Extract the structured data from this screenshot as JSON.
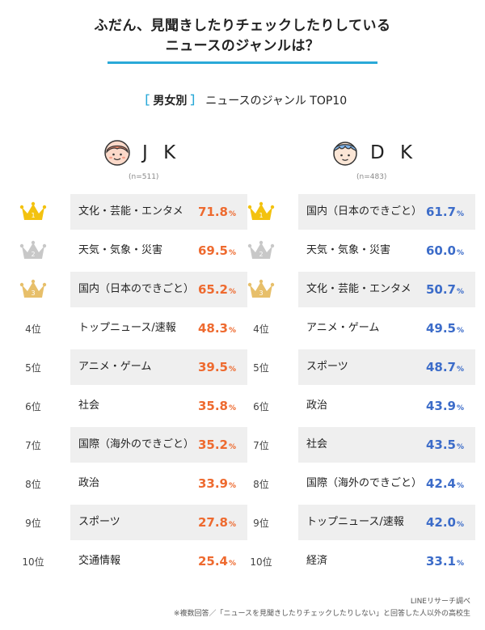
{
  "title_line1": "ふだん、見聞きしたりチェックしたりしている",
  "title_line2": "ニュースのジャンルは？",
  "subtitle": {
    "open_bracket": "［",
    "category": "男女別",
    "close_bracket": "］",
    "text": "ニュースのジャンル TOP10"
  },
  "colors": {
    "accent": "#2aa9d8",
    "jk_value": "#ee6a2f",
    "dk_value": "#3c6cc9",
    "gold": "#f3c20f",
    "silver": "#c8c8c8",
    "bronze": "#e7bf6a"
  },
  "chart_data": [
    {
      "type": "table",
      "group": "J K",
      "n_label": "(n=511)",
      "unit": "%",
      "ranks": [
        "1",
        "2",
        "3",
        "4位",
        "5位",
        "6位",
        "7位",
        "8位",
        "9位",
        "10位"
      ],
      "categories": [
        "文化・芸能・エンタメ",
        "天気・気象・災害",
        "国内（日本のできごと）",
        "トップニュース/速報",
        "アニメ・ゲーム",
        "社会",
        "国際（海外のできごと）",
        "政治",
        "スポーツ",
        "交通情報"
      ],
      "values": [
        71.8,
        69.5,
        65.2,
        48.3,
        39.5,
        35.8,
        35.2,
        33.9,
        27.8,
        25.4
      ]
    },
    {
      "type": "table",
      "group": "D K",
      "n_label": "(n=483)",
      "unit": "%",
      "ranks": [
        "1",
        "2",
        "3",
        "4位",
        "5位",
        "6位",
        "7位",
        "8位",
        "9位",
        "10位"
      ],
      "categories": [
        "国内（日本のできごと）",
        "天気・気象・災害",
        "文化・芸能・エンタメ",
        "アニメ・ゲーム",
        "スポーツ",
        "政治",
        "社会",
        "国際（海外のできごと）",
        "トップニュース/速報",
        "経済"
      ],
      "values": [
        61.7,
        60.0,
        50.7,
        49.5,
        48.7,
        43.9,
        43.5,
        42.4,
        42.0,
        33.1
      ]
    }
  ],
  "footer": {
    "source": "LINEリサーチ調べ",
    "note": "※複数回答／「ニュースを見聞きしたりチェックしたりしない」と回答した人以外の高校生"
  },
  "icons": {
    "jk_avatar": "girl-face-icon",
    "dk_avatar": "boy-face-icon",
    "rank1": "gold-crown-icon",
    "rank2": "silver-crown-icon",
    "rank3": "bronze-crown-icon"
  }
}
